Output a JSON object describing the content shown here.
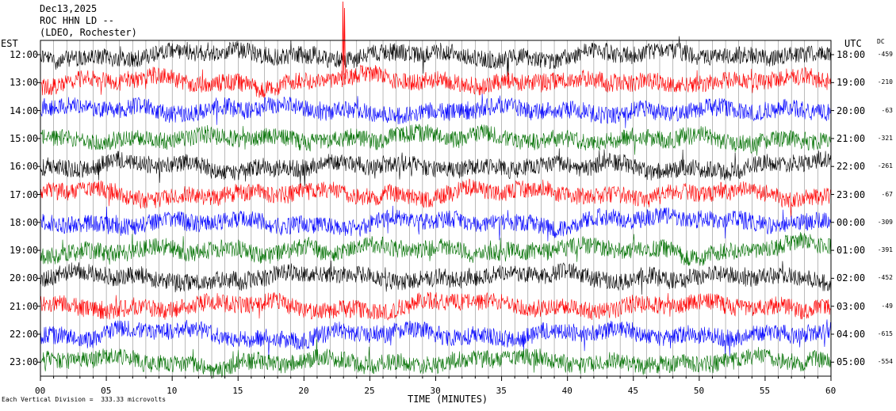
{
  "header": {
    "line1": "Dec13,2025",
    "line2": "ROC HHN LD --",
    "line3": "(LDEO, Rochester)"
  },
  "left_tz": "EST",
  "right_tz": "UTC",
  "dc_header": "DC",
  "footer_note": "Each Vertical Division =  333.33 microvolts",
  "chart_data": {
    "type": "line",
    "xlabel": "TIME (MINUTES)",
    "xlim": [
      0,
      60
    ],
    "x_ticks": [
      "00",
      "05",
      "10",
      "15",
      "20",
      "25",
      "30",
      "35",
      "40",
      "45",
      "50",
      "55",
      "60"
    ],
    "colors": [
      "#000000",
      "#ff0000",
      "#0000ff",
      "#007000"
    ],
    "rows": [
      {
        "est": "12:00",
        "utc": "18:00",
        "dc": "-459",
        "color": "#000000"
      },
      {
        "est": "13:00",
        "utc": "19:00",
        "dc": "-210",
        "color": "#ff0000"
      },
      {
        "est": "14:00",
        "utc": "20:00",
        "dc": "-63",
        "color": "#0000ff"
      },
      {
        "est": "15:00",
        "utc": "21:00",
        "dc": "-321",
        "color": "#007000"
      },
      {
        "est": "16:00",
        "utc": "22:00",
        "dc": "-261",
        "color": "#000000"
      },
      {
        "est": "17:00",
        "utc": "23:00",
        "dc": "-67",
        "color": "#ff0000"
      },
      {
        "est": "18:00",
        "utc": "00:00",
        "dc": "-309",
        "color": "#0000ff"
      },
      {
        "est": "19:00",
        "utc": "01:00",
        "dc": "-391",
        "color": "#007000"
      },
      {
        "est": "20:00",
        "utc": "02:00",
        "dc": "-452",
        "color": "#000000"
      },
      {
        "est": "21:00",
        "utc": "03:00",
        "dc": "-49",
        "color": "#ff0000"
      },
      {
        "est": "22:00",
        "utc": "04:00",
        "dc": "-615",
        "color": "#0000ff"
      },
      {
        "est": "23:00",
        "utc": "05:00",
        "dc": "-554",
        "color": "#007000"
      }
    ]
  }
}
